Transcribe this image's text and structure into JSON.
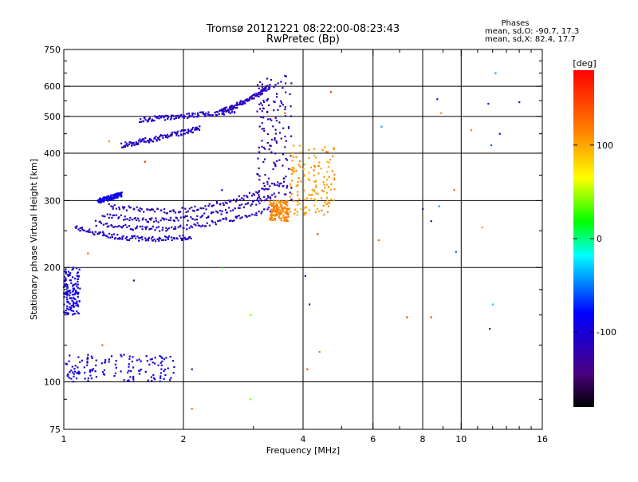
{
  "chart_data": {
    "type": "scatter",
    "title": "Tromsø 20121221 08:22:00-08:23:43",
    "subtitle": "RwPretec (Bp)",
    "phase_header": "Phases",
    "phase_stats": [
      "mean, sd,O: -90.7, 17.3",
      "mean, sd,X:  82.4, 17.7"
    ],
    "xlabel": "Frequency [MHz]",
    "ylabel": "Stationary phase Virtual Height [km]",
    "x_scale": "log",
    "y_scale": "log",
    "xlim": [
      1,
      16
    ],
    "ylim": [
      75,
      750
    ],
    "x_ticks": [
      1,
      2,
      4,
      6,
      8,
      10,
      16
    ],
    "x_tick_labels": [
      "1",
      "2",
      "4",
      "6",
      "8",
      "10",
      "16"
    ],
    "x_minor_ticks": [
      3,
      5,
      7,
      9,
      11,
      12,
      13,
      14,
      15
    ],
    "y_ticks": [
      75,
      100,
      200,
      300,
      400,
      500,
      600,
      750
    ],
    "y_tick_labels": [
      "75",
      "100",
      "200",
      "300",
      "400",
      "500",
      "600",
      "750"
    ],
    "y_minor_ticks": [
      90,
      125,
      150,
      175,
      250,
      350,
      450,
      550,
      650,
      700
    ],
    "grid": true,
    "colorbar": {
      "label": "[deg]",
      "range": [
        -180,
        180
      ],
      "ticks": [
        100,
        0,
        -100
      ],
      "tick_labels": [
        "100",
        "0",
        "-100"
      ]
    },
    "traces": [
      {
        "x_range": [
          1.07,
          2.1
        ],
        "y": [
          255,
          248,
          243,
          240,
          238,
          238,
          239,
          240
        ],
        "phase": -105
      },
      {
        "x_range": [
          1.2,
          3.3
        ],
        "y": [
          262,
          258,
          255,
          253,
          254,
          257,
          262,
          268,
          276,
          285
        ],
        "phase": -110
      },
      {
        "x_range": [
          1.25,
          3.4
        ],
        "y": [
          275,
          271,
          268,
          266,
          268,
          272,
          278,
          287,
          297,
          310
        ],
        "phase": -112
      },
      {
        "x_range": [
          1.3,
          3.6
        ],
        "y": [
          290,
          286,
          283,
          282,
          284,
          289,
          297,
          308,
          322,
          340
        ],
        "phase": -115
      },
      {
        "x_range": [
          1.55,
          2.7
        ],
        "y": [
          490,
          495,
          500,
          505,
          510,
          518
        ],
        "phase": -105
      },
      {
        "x_range": [
          1.4,
          2.2
        ],
        "y": [
          420,
          430,
          440,
          452,
          465
        ],
        "phase": -108
      },
      {
        "x_range": [
          2.5,
          3.3
        ],
        "y": [
          515,
          530,
          548,
          570,
          600
        ],
        "phase": -115
      },
      {
        "x_range": [
          1.22,
          1.4
        ],
        "y": [
          300,
          305,
          312
        ],
        "phase": -90
      }
    ],
    "vertical_clusters": [
      {
        "x": [
          3.05,
          3.75
        ],
        "y": [
          300,
          640
        ],
        "phase": -118
      },
      {
        "x": [
          3.7,
          4.8
        ],
        "y": [
          275,
          420
        ],
        "phase": 105
      },
      {
        "x": [
          3.3,
          3.7
        ],
        "y": [
          265,
          300
        ],
        "phase": 115
      },
      {
        "x": [
          1.0,
          1.1
        ],
        "y": [
          150,
          200
        ],
        "phase": -95
      },
      {
        "x": [
          1.0,
          1.9
        ],
        "y": [
          100,
          118
        ],
        "phase": -98
      }
    ],
    "scatter_points": [
      {
        "x": 6.3,
        "y": 470,
        "phase": -40
      },
      {
        "x": 6.2,
        "y": 236,
        "phase": 130
      },
      {
        "x": 7.3,
        "y": 148,
        "phase": 150
      },
      {
        "x": 8.0,
        "y": 285,
        "phase": -120
      },
      {
        "x": 8.4,
        "y": 265,
        "phase": -110
      },
      {
        "x": 8.7,
        "y": 555,
        "phase": -120
      },
      {
        "x": 8.8,
        "y": 290,
        "phase": -40
      },
      {
        "x": 8.9,
        "y": 510,
        "phase": 110
      },
      {
        "x": 8.4,
        "y": 148,
        "phase": 150
      },
      {
        "x": 9.6,
        "y": 320,
        "phase": 130
      },
      {
        "x": 9.7,
        "y": 220,
        "phase": -60
      },
      {
        "x": 10.6,
        "y": 460,
        "phase": 120
      },
      {
        "x": 11.3,
        "y": 255,
        "phase": 110
      },
      {
        "x": 11.7,
        "y": 540,
        "phase": -120
      },
      {
        "x": 12.0,
        "y": 160,
        "phase": -30
      },
      {
        "x": 11.8,
        "y": 138,
        "phase": -125
      },
      {
        "x": 11.9,
        "y": 420,
        "phase": -60
      },
      {
        "x": 12.2,
        "y": 650,
        "phase": -40
      },
      {
        "x": 12.5,
        "y": 450,
        "phase": -90
      },
      {
        "x": 14.0,
        "y": 545,
        "phase": -125
      },
      {
        "x": 4.35,
        "y": 245,
        "phase": 150
      },
      {
        "x": 4.4,
        "y": 120,
        "phase": 120
      },
      {
        "x": 4.1,
        "y": 108,
        "phase": 150
      },
      {
        "x": 4.15,
        "y": 160,
        "phase": -135
      },
      {
        "x": 4.05,
        "y": 190,
        "phase": -90
      },
      {
        "x": 4.7,
        "y": 580,
        "phase": 150
      },
      {
        "x": 3.6,
        "y": 415,
        "phase": -140
      },
      {
        "x": 2.5,
        "y": 200,
        "phase": 20
      },
      {
        "x": 2.95,
        "y": 150,
        "phase": 40
      },
      {
        "x": 2.95,
        "y": 90,
        "phase": 40
      },
      {
        "x": 2.1,
        "y": 85,
        "phase": 120
      },
      {
        "x": 2.1,
        "y": 108,
        "phase": -125
      },
      {
        "x": 1.5,
        "y": 185,
        "phase": -120
      },
      {
        "x": 1.6,
        "y": 380,
        "phase": 160
      },
      {
        "x": 1.3,
        "y": 430,
        "phase": 115
      },
      {
        "x": 1.15,
        "y": 218,
        "phase": 130
      },
      {
        "x": 1.25,
        "y": 125,
        "phase": 130
      },
      {
        "x": 2.5,
        "y": 320,
        "phase": -80
      },
      {
        "x": 3.6,
        "y": 510,
        "phase": 140
      }
    ]
  }
}
